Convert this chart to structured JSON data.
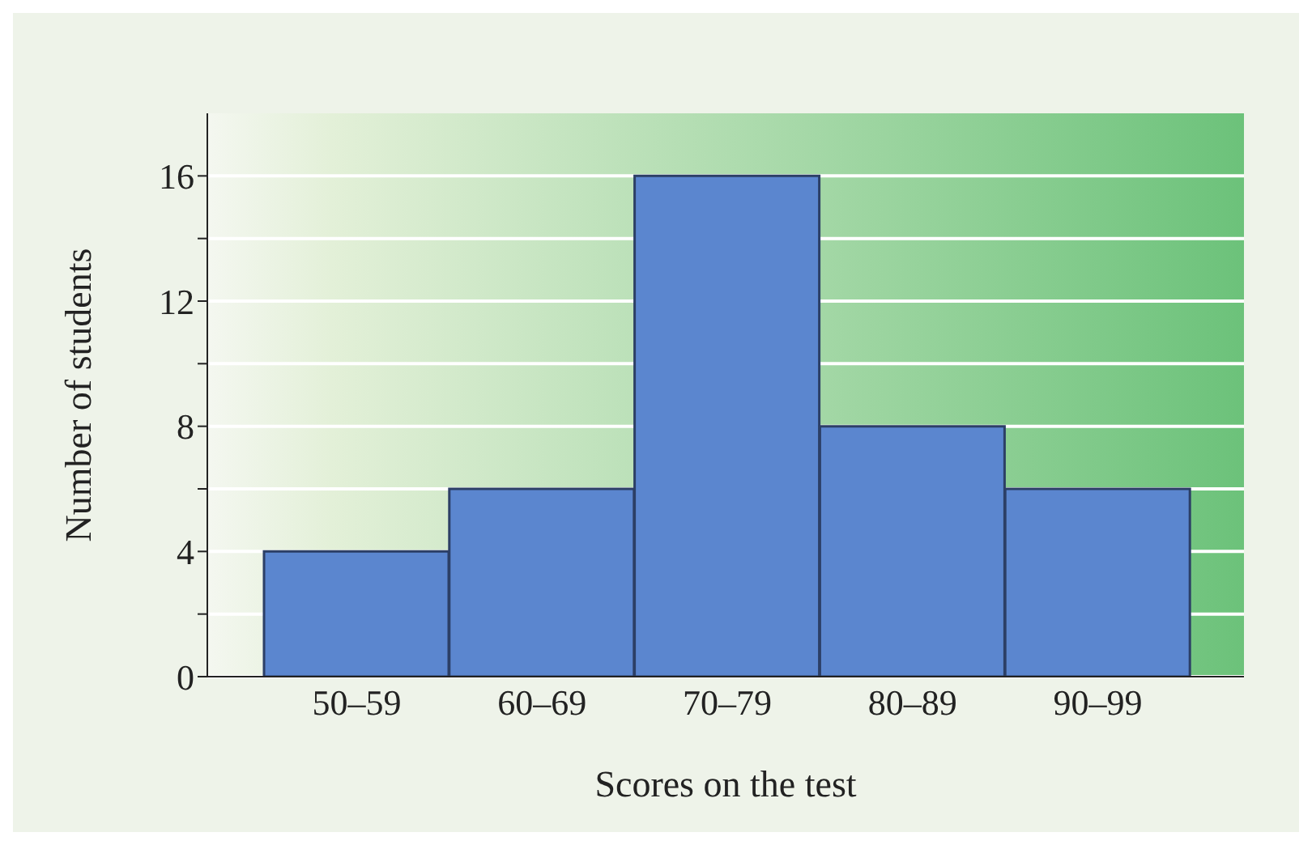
{
  "chart_data": {
    "type": "bar",
    "xlabel": "Scores on the test",
    "ylabel": "Number of students",
    "categories": [
      "50–59",
      "60–69",
      "70–79",
      "80–89",
      "90–99"
    ],
    "values": [
      4,
      6,
      16,
      8,
      6
    ],
    "color": "#5b86cf",
    "ylim": [
      0,
      18
    ],
    "yticks": [
      0,
      {
        "value": 2,
        "label": null
      },
      4,
      {
        "value": 6,
        "label": null
      },
      8,
      {
        "value": 10,
        "label": null
      },
      12,
      {
        "value": 14,
        "label": null
      },
      16
    ],
    "grid": "y"
  }
}
